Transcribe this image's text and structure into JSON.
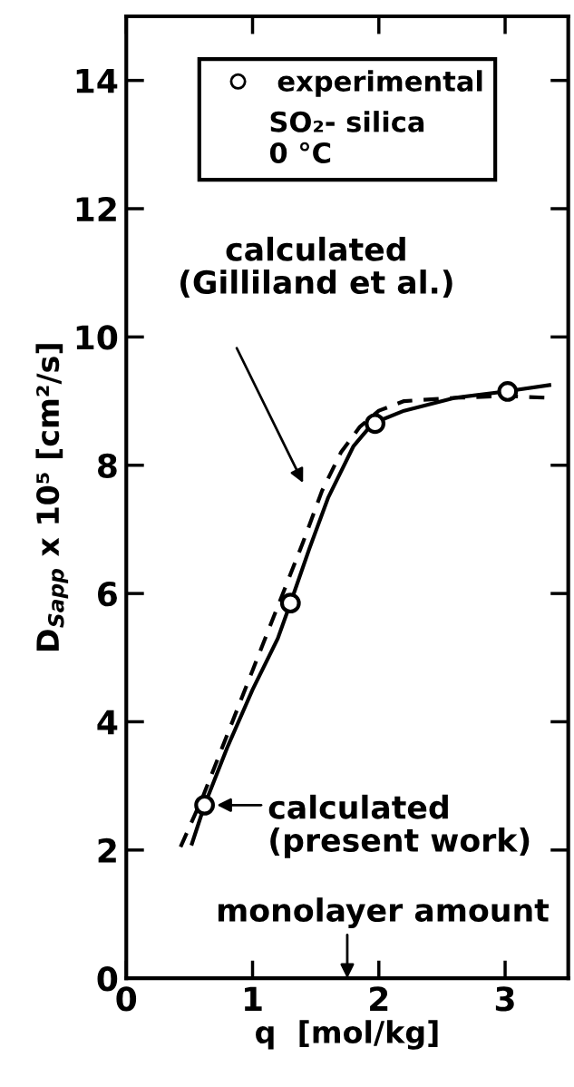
{
  "chart_data": {
    "type": "line",
    "xlabel": "q  [mol/kg]",
    "ylabel": "D$_{Sapp}$ x 10⁵ [cm²/s]",
    "legend_title": "SO₂- silica\n0 °C",
    "legend": "top",
    "xlim": [
      0,
      3.5
    ],
    "ylim": [
      0,
      15
    ],
    "xticks": [
      0,
      1,
      2,
      3
    ],
    "yticks": [
      0,
      2,
      4,
      6,
      8,
      10,
      12,
      14
    ],
    "series": [
      {
        "name": "experimental",
        "type": "scatter",
        "marker": "circle",
        "color": "#000000",
        "x": [
          0.62,
          1.3,
          1.97,
          3.02
        ],
        "values": [
          2.7,
          5.85,
          8.65,
          9.15
        ]
      },
      {
        "line_style": "solid",
        "color": "#000000",
        "x": [
          0.52,
          0.62,
          0.8,
          1.0,
          1.2,
          1.3,
          1.45,
          1.6,
          1.8,
          1.95,
          2.2,
          2.6,
          3.0,
          3.35
        ],
        "values": [
          2.1,
          2.7,
          3.6,
          4.5,
          5.3,
          5.85,
          6.7,
          7.5,
          8.3,
          8.65,
          8.85,
          9.05,
          9.15,
          9.25
        ]
      },
      {
        "line_style": "dashed",
        "color": "#000000",
        "x": [
          0.43,
          0.6,
          0.8,
          1.0,
          1.2,
          1.4,
          1.55,
          1.7,
          1.85,
          2.0,
          2.2,
          2.6,
          3.0,
          3.35
        ],
        "values": [
          2.05,
          2.8,
          3.8,
          4.8,
          5.8,
          6.8,
          7.6,
          8.2,
          8.6,
          8.85,
          9.0,
          9.05,
          9.08,
          9.05
        ]
      }
    ],
    "annotations": [
      "calculated\n(Gilliland et al.)",
      "calculated\n(present work)",
      "monolayer amount"
    ]
  }
}
